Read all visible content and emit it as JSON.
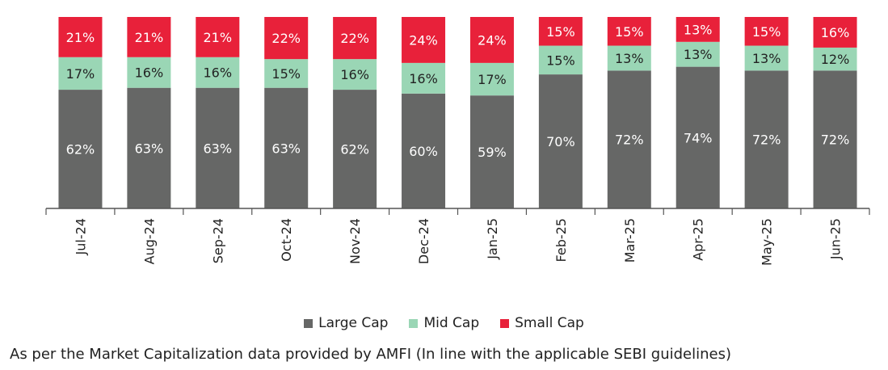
{
  "chart_data": {
    "type": "bar",
    "stacked": true,
    "categories": [
      "Jul-24",
      "Aug-24",
      "Sep-24",
      "Oct-24",
      "Nov-24",
      "Dec-24",
      "Jan-25",
      "Feb-25",
      "Mar-25",
      "Apr-25",
      "May-25",
      "Jun-25"
    ],
    "series": [
      {
        "name": "Large Cap",
        "color": "#666766",
        "values": [
          62,
          63,
          63,
          63,
          62,
          60,
          59,
          70,
          72,
          74,
          72,
          72
        ]
      },
      {
        "name": "Mid Cap",
        "color": "#9ad6b5",
        "values": [
          17,
          16,
          16,
          15,
          16,
          16,
          17,
          15,
          13,
          13,
          13,
          12
        ]
      },
      {
        "name": "Small Cap",
        "color": "#e8213a",
        "values": [
          21,
          21,
          21,
          22,
          22,
          24,
          24,
          15,
          15,
          13,
          15,
          16
        ]
      }
    ],
    "value_suffix": "%",
    "ylim": [
      0,
      100
    ],
    "grid": false,
    "legend_position": "bottom"
  },
  "footnote": "As per the Market Capitalization data provided by AMFI (In line with the applicable SEBI guidelines)"
}
